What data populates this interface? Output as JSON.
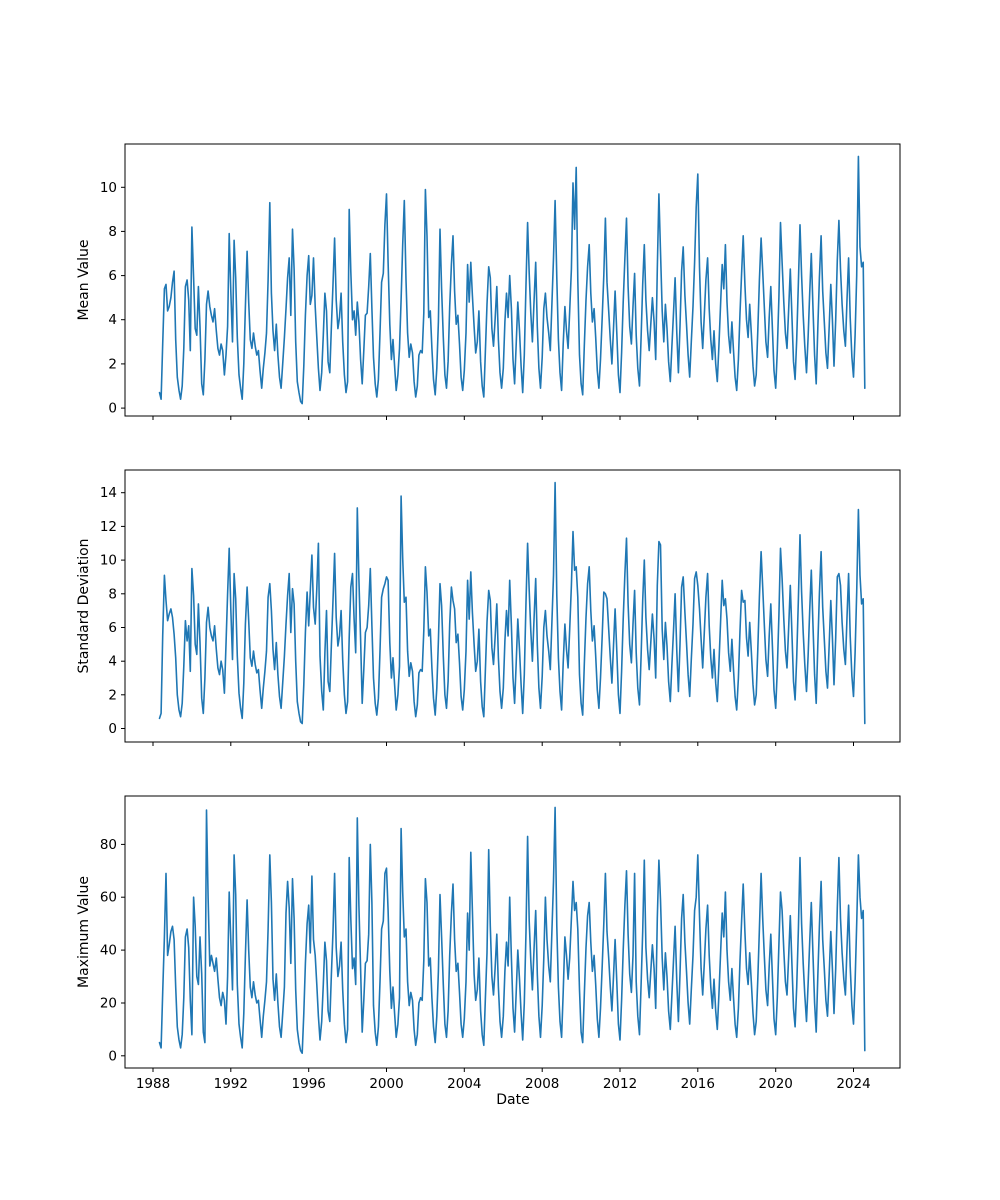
{
  "figure": {
    "background": "#ffffff"
  },
  "xlabel": "Date",
  "chart_data": [
    {
      "type": "line",
      "title": "",
      "xlabel": "",
      "ylabel": "Mean Value",
      "legend": "none",
      "grid": false,
      "line_color": "#1f77b4",
      "xlim": [
        1986.56,
        2026.39
      ],
      "ylim": [
        -0.36,
        11.96
      ],
      "xticks": [
        1988,
        1992,
        1996,
        2000,
        2004,
        2008,
        2012,
        2016,
        2020,
        2024
      ],
      "show_xtick_labels": false,
      "yticks": [
        0,
        2,
        4,
        6,
        8,
        10
      ],
      "x_start": 1988.3333,
      "x_step": 0.083333,
      "values": [
        0.7,
        0.4,
        2.9,
        5.4,
        5.6,
        4.4,
        4.6,
        5.0,
        5.7,
        6.2,
        3.1,
        1.4,
        0.8,
        0.4,
        1.0,
        2.7,
        5.5,
        5.8,
        4.9,
        2.6,
        8.2,
        5.9,
        3.6,
        3.3,
        5.5,
        3.7,
        1.1,
        0.6,
        2.2,
        4.7,
        5.3,
        4.6,
        4.2,
        3.9,
        4.5,
        3.5,
        2.7,
        2.4,
        2.9,
        2.6,
        1.5,
        2.4,
        3.7,
        7.9,
        5.3,
        3.0,
        7.6,
        5.9,
        3.2,
        1.5,
        0.9,
        0.4,
        2.0,
        4.6,
        7.1,
        4.8,
        3.1,
        2.7,
        3.4,
        2.8,
        2.4,
        2.6,
        1.7,
        0.9,
        1.8,
        2.5,
        3.4,
        5.8,
        9.3,
        5.2,
        3.5,
        2.6,
        3.8,
        2.4,
        1.4,
        0.9,
        2.0,
        3.2,
        4.5,
        5.9,
        6.8,
        4.2,
        8.1,
        6.3,
        3.0,
        1.2,
        0.7,
        0.3,
        0.2,
        1.9,
        4.2,
        6.0,
        6.9,
        4.7,
        5.1,
        6.8,
        4.6,
        3.2,
        1.8,
        0.8,
        1.6,
        3.3,
        5.2,
        4.4,
        2.1,
        1.6,
        3.7,
        5.6,
        7.7,
        4.9,
        3.6,
        4.1,
        5.2,
        3.0,
        1.5,
        0.7,
        1.2,
        9.0,
        6.2,
        4.0,
        4.4,
        3.3,
        4.8,
        3.9,
        2.2,
        1.1,
        2.6,
        4.2,
        4.3,
        5.5,
        7.0,
        4.5,
        2.3,
        1.1,
        0.5,
        1.3,
        3.4,
        5.7,
        6.1,
        8.3,
        9.7,
        6.6,
        3.8,
        2.2,
        3.1,
        1.9,
        0.8,
        1.5,
        2.7,
        4.9,
        7.4,
        9.4,
        5.8,
        3.4,
        2.3,
        2.9,
        2.5,
        1.2,
        0.5,
        1.0,
        2.4,
        2.6,
        2.5,
        4.3,
        9.9,
        7.8,
        4.1,
        4.4,
        2.7,
        1.3,
        0.6,
        1.8,
        3.9,
        8.1,
        5.4,
        3.2,
        1.5,
        0.9,
        2.1,
        4.6,
        6.5,
        7.8,
        5.3,
        3.8,
        4.2,
        2.9,
        1.4,
        0.8,
        1.7,
        3.4,
        6.5,
        4.8,
        6.6,
        5.1,
        3.7,
        2.5,
        3.0,
        4.4,
        2.1,
        1.0,
        0.5,
        2.6,
        4.7,
        6.4,
        5.9,
        3.6,
        2.8,
        4.0,
        5.5,
        3.1,
        1.6,
        0.9,
        1.8,
        3.9,
        5.2,
        4.1,
        6.0,
        4.5,
        2.2,
        1.1,
        2.9,
        4.8,
        3.5,
        1.9,
        0.7,
        2.4,
        5.6,
        8.4,
        6.1,
        4.3,
        3.0,
        4.9,
        6.6,
        3.7,
        1.8,
        0.9,
        2.3,
        4.5,
        5.2,
        4.1,
        3.4,
        2.6,
        4.7,
        6.8,
        9.4,
        5.9,
        3.1,
        1.6,
        0.8,
        2.9,
        4.6,
        3.5,
        2.7,
        4.4,
        6.3,
        10.2,
        8.1,
        10.9,
        5.8,
        2.4,
        1.1,
        0.6,
        2.8,
        4.9,
        6.4,
        7.4,
        5.2,
        3.9,
        4.5,
        3.2,
        1.7,
        0.9,
        2.2,
        4.1,
        6.0,
        8.6,
        5.7,
        4.4,
        3.1,
        2.0,
        3.6,
        5.3,
        3.4,
        1.5,
        0.7,
        2.5,
        4.8,
        6.8,
        8.6,
        5.5,
        3.7,
        2.9,
        4.6,
        6.1,
        3.3,
        1.8,
        1.0,
        3.2,
        5.6,
        7.4,
        4.9,
        3.5,
        2.6,
        3.8,
        5.0,
        3.9,
        2.2,
        6.3,
        9.7,
        7.1,
        4.4,
        3.0,
        4.7,
        3.6,
        2.1,
        1.2,
        2.8,
        4.3,
        5.9,
        3.4,
        1.6,
        3.7,
        6.2,
        7.3,
        5.1,
        3.8,
        2.4,
        1.4,
        3.0,
        4.6,
        6.6,
        9.1,
        10.6,
        6.4,
        3.9,
        2.7,
        4.2,
        5.8,
        6.8,
        4.5,
        3.1,
        2.2,
        3.5,
        2.0,
        1.2,
        2.8,
        4.6,
        6.5,
        5.4,
        7.4,
        4.8,
        3.3,
        2.5,
        3.9,
        2.6,
        1.4,
        0.8,
        2.2,
        4.3,
        6.1,
        7.8,
        5.6,
        4.0,
        3.2,
        4.7,
        3.4,
        1.9,
        1.0,
        1.5,
        3.5,
        5.8,
        7.7,
        6.2,
        4.6,
        3.0,
        2.3,
        4.1,
        5.5,
        3.6,
        1.7,
        0.9,
        2.6,
        5.0,
        8.4,
        6.6,
        4.8,
        3.4,
        2.7,
        4.4,
        6.3,
        4.2,
        2.1,
        1.3,
        3.1,
        5.7,
        8.3,
        6.0,
        4.2,
        2.8,
        1.6,
        3.2,
        5.2,
        7.0,
        4.5,
        2.4,
        1.1,
        3.6,
        5.9,
        7.8,
        5.3,
        3.9,
        2.5,
        1.8,
        3.7,
        5.6,
        4.0,
        1.9,
        4.0,
        6.7,
        8.5,
        6.3,
        4.7,
        3.5,
        2.8,
        4.9,
        6.8,
        4.1,
        2.3,
        1.4,
        3.3,
        6.0,
        11.4,
        7.3,
        6.4,
        6.6,
        0.9
      ]
    },
    {
      "type": "line",
      "title": "",
      "xlabel": "",
      "ylabel": "Standard Deviation",
      "legend": "none",
      "grid": false,
      "line_color": "#1f77b4",
      "xlim": [
        1986.56,
        2026.39
      ],
      "ylim": [
        -0.8,
        15.35
      ],
      "xticks": [
        1988,
        1992,
        1996,
        2000,
        2004,
        2008,
        2012,
        2016,
        2020,
        2024
      ],
      "show_xtick_labels": false,
      "yticks": [
        0,
        2,
        4,
        6,
        8,
        10,
        12,
        14
      ],
      "x_start": 1988.3333,
      "x_step": 0.083333,
      "values": [
        0.6,
        0.9,
        5.5,
        9.1,
        7.6,
        6.4,
        6.8,
        7.1,
        6.6,
        5.6,
        4.2,
        2.0,
        1.1,
        0.7,
        1.5,
        3.7,
        6.4,
        5.2,
        6.1,
        3.4,
        9.5,
        7.9,
        5.0,
        4.4,
        7.4,
        5.1,
        1.8,
        0.9,
        3.0,
        6.3,
        7.2,
        6.0,
        5.5,
        5.2,
        6.1,
        4.7,
        3.6,
        3.2,
        4.0,
        3.5,
        2.1,
        5.0,
        8.0,
        10.7,
        7.1,
        4.1,
        9.2,
        7.7,
        4.3,
        2.1,
        1.2,
        0.6,
        2.7,
        6.2,
        8.4,
        6.4,
        4.2,
        3.7,
        4.6,
        3.8,
        3.3,
        3.5,
        2.3,
        1.2,
        2.4,
        3.4,
        4.6,
        7.8,
        8.6,
        7.0,
        4.7,
        3.5,
        5.1,
        3.2,
        1.9,
        1.2,
        2.7,
        4.3,
        6.2,
        7.9,
        9.2,
        5.7,
        8.3,
        7.4,
        4.0,
        1.6,
        0.9,
        0.4,
        0.3,
        2.6,
        5.7,
        8.1,
        6.1,
        8.2,
        10.3,
        7.2,
        6.2,
        8.3,
        11.0,
        4.3,
        2.2,
        1.1,
        4.5,
        7.0,
        2.8,
        2.2,
        5.0,
        7.6,
        10.4,
        6.6,
        4.9,
        5.5,
        7.0,
        4.1,
        2.0,
        0.9,
        1.6,
        5.4,
        8.4,
        9.2,
        6.5,
        4.5,
        13.1,
        8.9,
        5.3,
        1.5,
        3.5,
        5.7,
        6.0,
        7.3,
        9.5,
        6.1,
        3.0,
        1.5,
        0.8,
        1.8,
        4.6,
        7.8,
        8.3,
        8.6,
        9.0,
        8.8,
        5.1,
        3.0,
        4.2,
        2.6,
        1.1,
        2.0,
        3.7,
        13.8,
        10.1,
        7.5,
        7.8,
        4.6,
        3.1,
        3.9,
        3.4,
        1.6,
        0.7,
        1.4,
        3.3,
        3.5,
        3.4,
        5.8,
        9.6,
        8.1,
        5.5,
        5.9,
        3.6,
        1.8,
        0.8,
        2.4,
        5.2,
        8.6,
        7.3,
        4.3,
        2.0,
        1.2,
        2.8,
        6.2,
        8.4,
        7.6,
        7.1,
        5.1,
        5.6,
        3.9,
        1.9,
        1.1,
        2.3,
        4.6,
        8.8,
        6.5,
        9.3,
        6.9,
        5.0,
        3.4,
        4.0,
        5.9,
        2.8,
        1.3,
        0.7,
        3.5,
        6.3,
        8.2,
        7.6,
        4.8,
        3.8,
        5.4,
        7.4,
        4.2,
        2.2,
        1.2,
        2.4,
        5.2,
        7.0,
        5.5,
        8.8,
        6.1,
        3.0,
        1.5,
        3.9,
        6.5,
        4.7,
        2.6,
        0.9,
        3.2,
        7.5,
        11.0,
        8.2,
        5.8,
        4.0,
        6.6,
        8.9,
        5.0,
        2.4,
        1.2,
        3.1,
        6.0,
        7.0,
        5.5,
        4.6,
        3.5,
        6.3,
        9.1,
        14.6,
        7.9,
        4.2,
        2.2,
        1.1,
        3.9,
        6.2,
        4.7,
        3.6,
        5.9,
        8.5,
        11.7,
        9.4,
        9.6,
        7.8,
        3.2,
        1.5,
        0.8,
        3.8,
        6.6,
        8.6,
        9.6,
        7.0,
        5.2,
        6.1,
        4.3,
        2.3,
        1.2,
        3.0,
        5.5,
        8.1,
        8.0,
        7.7,
        5.9,
        4.2,
        2.7,
        4.9,
        7.1,
        4.6,
        2.0,
        0.9,
        3.4,
        6.5,
        9.2,
        11.3,
        7.4,
        5.0,
        3.9,
        6.2,
        8.2,
        4.5,
        2.4,
        1.4,
        4.3,
        7.6,
        10.0,
        6.6,
        4.7,
        3.5,
        5.1,
        6.8,
        5.3,
        3.0,
        8.5,
        11.1,
        10.9,
        5.9,
        4.1,
        6.3,
        4.9,
        2.8,
        1.6,
        3.8,
        5.8,
        8.0,
        4.6,
        2.2,
        5.0,
        8.4,
        9.0,
        6.9,
        5.1,
        3.2,
        1.9,
        4.1,
        6.2,
        8.9,
        9.3,
        8.5,
        7.1,
        5.3,
        3.6,
        5.7,
        7.8,
        9.2,
        6.1,
        4.2,
        3.0,
        4.7,
        2.7,
        1.6,
        3.8,
        6.2,
        8.8,
        7.3,
        7.7,
        6.5,
        4.5,
        3.4,
        5.3,
        3.5,
        1.9,
        1.1,
        3.0,
        5.8,
        8.2,
        7.5,
        7.6,
        5.4,
        4.3,
        6.3,
        4.6,
        2.6,
        1.4,
        2.0,
        4.7,
        7.8,
        10.5,
        8.4,
        6.2,
        4.1,
        3.1,
        5.5,
        7.4,
        4.9,
        2.3,
        1.2,
        3.5,
        6.7,
        10.7,
        8.9,
        6.5,
        4.6,
        3.6,
        5.9,
        8.5,
        5.7,
        2.8,
        1.7,
        4.2,
        7.7,
        11.5,
        8.1,
        5.7,
        3.8,
        2.2,
        4.3,
        7.0,
        9.4,
        6.1,
        3.2,
        1.5,
        4.9,
        8.0,
        10.5,
        7.2,
        5.3,
        3.4,
        2.4,
        5.0,
        7.6,
        5.4,
        2.6,
        5.4,
        9.0,
        9.2,
        8.5,
        6.3,
        4.7,
        3.8,
        6.6,
        9.2,
        5.5,
        3.1,
        1.9,
        4.5,
        8.1,
        13.0,
        9.1,
        7.4,
        7.7,
        0.3
      ]
    },
    {
      "type": "line",
      "title": "",
      "xlabel": "Date",
      "ylabel": "Maximum Value",
      "legend": "none",
      "grid": false,
      "line_color": "#1f77b4",
      "xlim": [
        1986.56,
        2026.39
      ],
      "ylim": [
        -4.6,
        98.3
      ],
      "xticks": [
        1988,
        1992,
        1996,
        2000,
        2004,
        2008,
        2012,
        2016,
        2020,
        2024
      ],
      "show_xtick_labels": true,
      "yticks": [
        0,
        20,
        40,
        60,
        80
      ],
      "x_start": 1988.3333,
      "x_step": 0.083333,
      "values": [
        5,
        3,
        24,
        45,
        69,
        38,
        42,
        47,
        49,
        44,
        26,
        11,
        6,
        3,
        8,
        22,
        45,
        48,
        41,
        21,
        8,
        60,
        49,
        30,
        27,
        45,
        31,
        9,
        5,
        93,
        60,
        34,
        38,
        35,
        32,
        37,
        29,
        22,
        19,
        24,
        21,
        12,
        30,
        62,
        44,
        25,
        76,
        61,
        27,
        12,
        7,
        3,
        16,
        38,
        59,
        40,
        26,
        22,
        28,
        23,
        20,
        21,
        14,
        7,
        15,
        21,
        28,
        48,
        76,
        58,
        29,
        21,
        31,
        20,
        11,
        7,
        16,
        26,
        54,
        66,
        56,
        35,
        67,
        52,
        25,
        10,
        5,
        2,
        1,
        16,
        35,
        50,
        57,
        39,
        68,
        44,
        38,
        27,
        15,
        6,
        13,
        27,
        43,
        36,
        17,
        13,
        31,
        47,
        69,
        41,
        30,
        34,
        43,
        25,
        12,
        5,
        10,
        75,
        52,
        33,
        37,
        27,
        90,
        57,
        33,
        9,
        21,
        35,
        36,
        46,
        80,
        58,
        19,
        9,
        4,
        11,
        28,
        48,
        51,
        69,
        71,
        55,
        32,
        18,
        26,
        16,
        7,
        12,
        22,
        86,
        62,
        45,
        48,
        28,
        19,
        24,
        21,
        10,
        4,
        8,
        20,
        22,
        21,
        36,
        67,
        58,
        34,
        37,
        22,
        11,
        5,
        15,
        32,
        61,
        45,
        27,
        12,
        7,
        17,
        38,
        54,
        65,
        44,
        32,
        35,
        24,
        12,
        7,
        14,
        28,
        54,
        40,
        77,
        55,
        31,
        21,
        25,
        37,
        17,
        8,
        4,
        22,
        39,
        78,
        49,
        30,
        23,
        33,
        46,
        26,
        13,
        7,
        15,
        32,
        43,
        34,
        60,
        37,
        18,
        9,
        24,
        40,
        29,
        16,
        6,
        20,
        47,
        83,
        51,
        36,
        25,
        41,
        55,
        31,
        15,
        7,
        19,
        37,
        60,
        44,
        34,
        28,
        47,
        66,
        94,
        49,
        26,
        13,
        7,
        24,
        45,
        38,
        29,
        37,
        52,
        66,
        55,
        58,
        48,
        25,
        9,
        5,
        23,
        41,
        53,
        58,
        43,
        32,
        38,
        27,
        14,
        7,
        18,
        34,
        50,
        69,
        47,
        37,
        26,
        17,
        30,
        44,
        28,
        12,
        6,
        21,
        40,
        57,
        70,
        46,
        31,
        24,
        38,
        69,
        28,
        15,
        8,
        27,
        47,
        74,
        41,
        29,
        22,
        32,
        42,
        33,
        18,
        52,
        74,
        59,
        37,
        25,
        39,
        30,
        17,
        10,
        23,
        36,
        49,
        28,
        13,
        31,
        52,
        61,
        43,
        32,
        20,
        12,
        25,
        38,
        55,
        60,
        76,
        53,
        33,
        23,
        35,
        48,
        57,
        38,
        26,
        18,
        29,
        17,
        10,
        23,
        38,
        54,
        45,
        62,
        40,
        28,
        21,
        33,
        22,
        12,
        7,
        18,
        36,
        51,
        65,
        47,
        33,
        27,
        39,
        28,
        16,
        8,
        13,
        29,
        48,
        69,
        52,
        38,
        25,
        19,
        34,
        46,
        30,
        14,
        8,
        22,
        42,
        62,
        55,
        40,
        28,
        23,
        37,
        53,
        35,
        18,
        11,
        26,
        48,
        75,
        50,
        35,
        23,
        13,
        27,
        43,
        58,
        38,
        20,
        9,
        30,
        49,
        66,
        44,
        33,
        21,
        15,
        31,
        47,
        33,
        16,
        33,
        56,
        75,
        52,
        39,
        29,
        23,
        41,
        57,
        34,
        19,
        12,
        28,
        50,
        76,
        60,
        52,
        55,
        2
      ]
    }
  ]
}
